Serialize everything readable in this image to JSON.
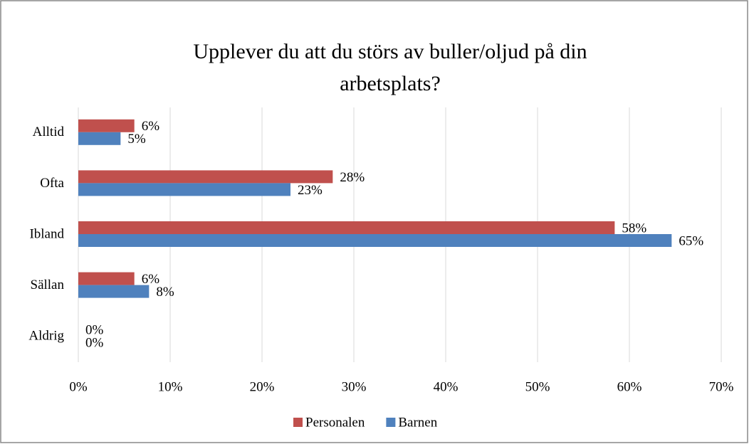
{
  "chart_data": {
    "type": "bar",
    "orientation": "horizontal",
    "title": "Upplever du att du störs av buller/oljud på din arbetsplats?",
    "categories": [
      "Alltid",
      "Ofta",
      "Ibland",
      "Sällan",
      "Aldrig"
    ],
    "series": [
      {
        "name": "Personalen",
        "color": "#c0504d",
        "values": [
          6.1,
          27.7,
          58.4,
          6.1,
          0
        ],
        "value_labels": [
          "6%",
          "28%",
          "58%",
          "6%",
          "0%"
        ]
      },
      {
        "name": "Barnen",
        "color": "#4f81bd",
        "values": [
          4.6,
          23.1,
          64.6,
          7.7,
          0
        ],
        "value_labels": [
          "5%",
          "23%",
          "65%",
          "8%",
          "0%"
        ]
      }
    ],
    "xlim": [
      0,
      70
    ],
    "xticks": [
      {
        "value": 0,
        "label": "0%"
      },
      {
        "value": 10,
        "label": "10%"
      },
      {
        "value": 20,
        "label": "20%"
      },
      {
        "value": 30,
        "label": "30%"
      },
      {
        "value": 40,
        "label": "40%"
      },
      {
        "value": 50,
        "label": "50%"
      },
      {
        "value": 60,
        "label": "60%"
      },
      {
        "value": 70,
        "label": "70%"
      }
    ],
    "grid": true,
    "legend": "bottom"
  }
}
